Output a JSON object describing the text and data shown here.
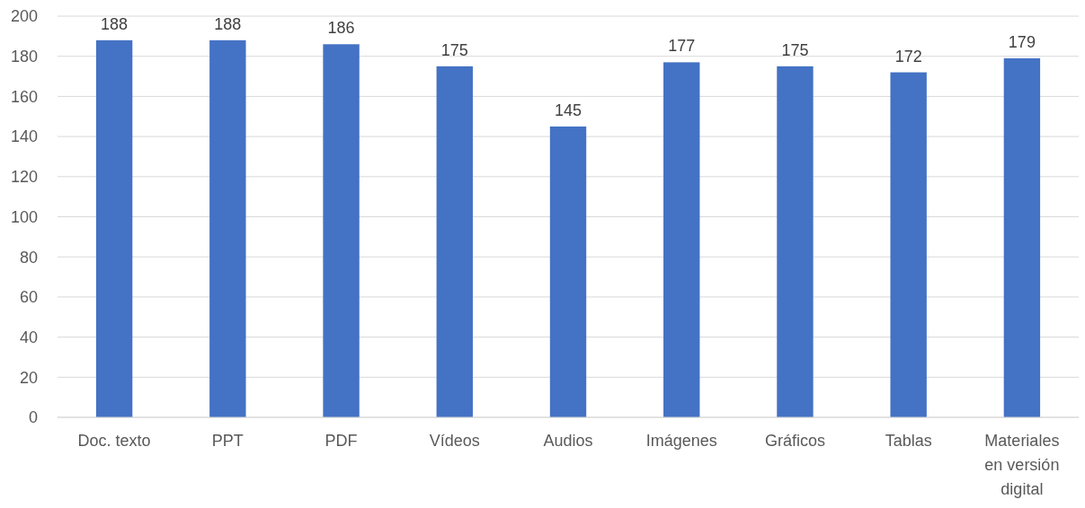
{
  "chart_data": {
    "type": "bar",
    "categories": [
      "Doc. texto",
      "PPT",
      "PDF",
      "Vídeos",
      "Audios",
      "Imágenes",
      "Gráficos",
      "Tablas",
      "Materiales en versión digital"
    ],
    "values": [
      188,
      188,
      186,
      175,
      145,
      177,
      175,
      172,
      179
    ],
    "color": "#4472c4",
    "ylim": [
      0,
      200
    ],
    "yticks": [
      0,
      20,
      40,
      60,
      80,
      100,
      120,
      140,
      160,
      180,
      200
    ],
    "grid": "y",
    "data_labels": true
  }
}
